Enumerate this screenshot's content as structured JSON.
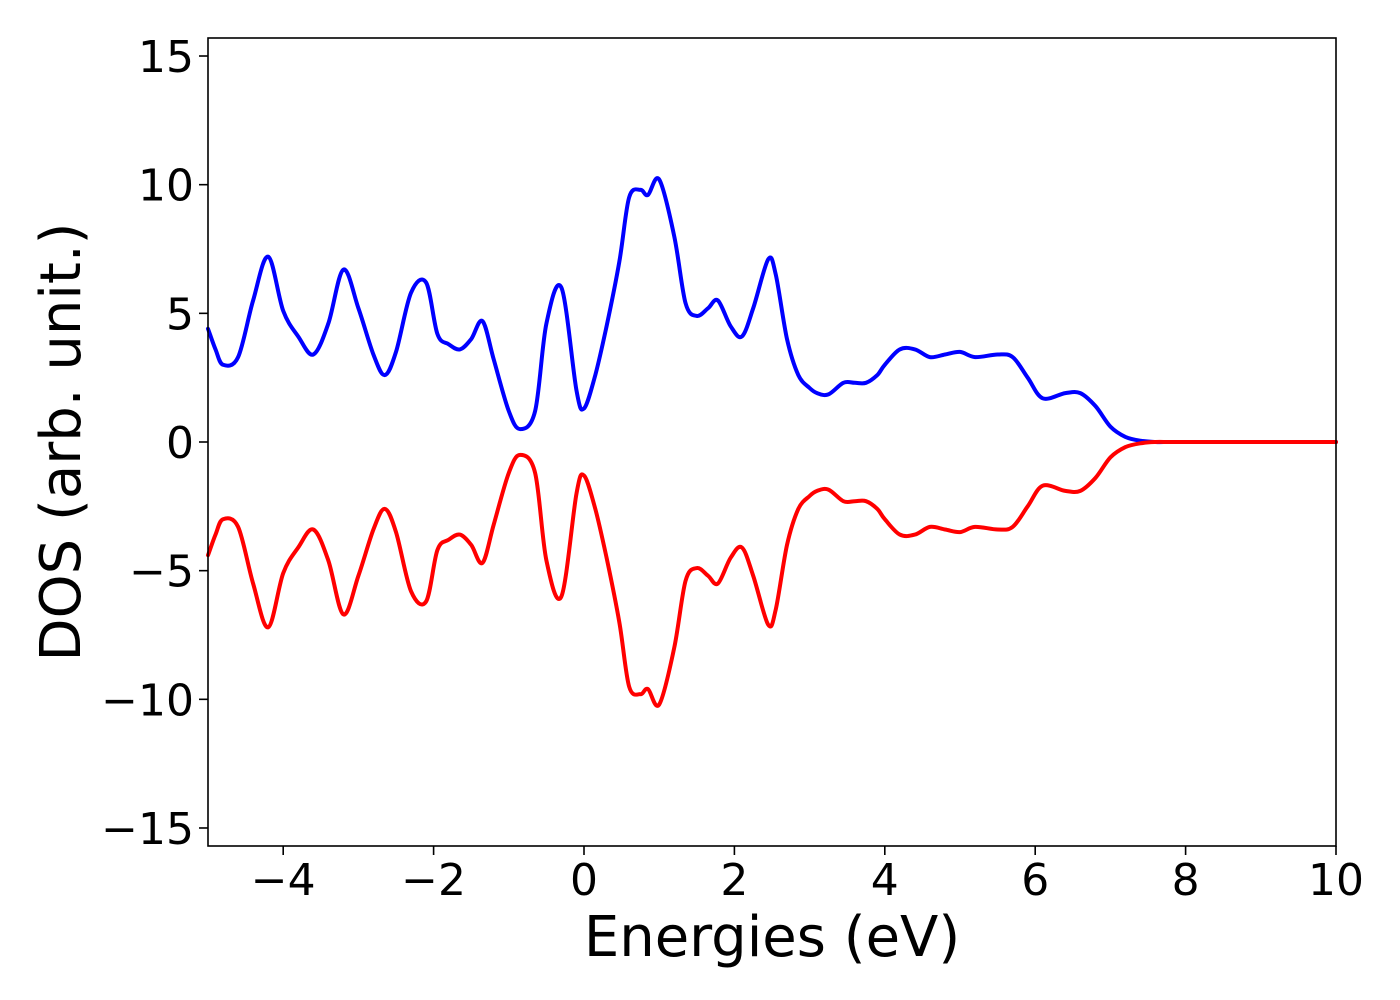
{
  "chart_data": {
    "type": "line",
    "xlabel": "Energies (eV)",
    "ylabel": "DOS (arb. unit.)",
    "xlim": [
      -5,
      10
    ],
    "ylim": [
      -15.7,
      15.7
    ],
    "xticks": [
      {
        "value": -4,
        "label": "−4"
      },
      {
        "value": -2,
        "label": "−2"
      },
      {
        "value": 0,
        "label": "0"
      },
      {
        "value": 2,
        "label": "2"
      },
      {
        "value": 4,
        "label": "4"
      },
      {
        "value": 6,
        "label": "6"
      },
      {
        "value": 8,
        "label": "8"
      },
      {
        "value": 10,
        "label": "10"
      }
    ],
    "yticks": [
      {
        "value": 15,
        "label": "15"
      },
      {
        "value": 10,
        "label": "10"
      },
      {
        "value": 5,
        "label": "5"
      },
      {
        "value": 0,
        "label": "0"
      },
      {
        "value": -5,
        "label": "−5"
      },
      {
        "value": -10,
        "label": "−10"
      },
      {
        "value": -15,
        "label": "−15"
      }
    ],
    "grid": false,
    "series": [
      {
        "color": "#0000ff",
        "x": [
          -5.0,
          -4.9,
          -4.8,
          -4.6,
          -4.4,
          -4.2,
          -4.0,
          -3.8,
          -3.6,
          -3.4,
          -3.2,
          -3.0,
          -2.8,
          -2.65,
          -2.5,
          -2.3,
          -2.1,
          -1.95,
          -1.8,
          -1.65,
          -1.5,
          -1.35,
          -1.2,
          -1.0,
          -0.85,
          -0.65,
          -0.5,
          -0.3,
          -0.1,
          0.0,
          0.15,
          0.3,
          0.47,
          0.6,
          0.75,
          0.85,
          1.0,
          1.2,
          1.35,
          1.5,
          1.65,
          1.78,
          1.95,
          2.1,
          2.25,
          2.45,
          2.55,
          2.7,
          2.85,
          3.0,
          3.1,
          3.25,
          3.45,
          3.6,
          3.75,
          3.9,
          4.0,
          4.2,
          4.4,
          4.6,
          4.8,
          5.0,
          5.2,
          5.5,
          5.7,
          5.9,
          6.1,
          6.4,
          6.6,
          6.8,
          7.0,
          7.2,
          7.4,
          7.6,
          7.75,
          7.85,
          8.0,
          8.15,
          8.3,
          8.5,
          8.7,
          9.0,
          10.0
        ],
        "y": [
          4.4,
          3.6,
          3.0,
          3.3,
          5.5,
          7.2,
          5.1,
          4.1,
          3.4,
          4.6,
          6.7,
          5.2,
          3.4,
          2.6,
          3.5,
          5.8,
          6.2,
          4.2,
          3.8,
          3.6,
          4.0,
          4.7,
          3.2,
          1.2,
          0.5,
          1.2,
          4.6,
          6.0,
          2.0,
          1.3,
          2.6,
          4.5,
          7.0,
          9.5,
          9.8,
          9.6,
          10.2,
          8.0,
          5.4,
          4.9,
          5.2,
          5.5,
          4.5,
          4.1,
          5.2,
          7.1,
          6.5,
          4.0,
          2.6,
          2.1,
          1.9,
          1.85,
          2.3,
          2.3,
          2.3,
          2.6,
          3.0,
          3.6,
          3.6,
          3.3,
          3.4,
          3.5,
          3.3,
          3.4,
          3.3,
          2.5,
          1.7,
          1.9,
          1.9,
          1.4,
          0.6,
          0.2,
          0.05,
          0.0,
          0.0,
          0.0,
          0.0,
          0.0,
          0.0,
          0.0,
          0.0,
          0.0,
          0.0
        ]
      },
      {
        "color": "#ff0000",
        "x": [
          -5.0,
          -4.9,
          -4.8,
          -4.6,
          -4.4,
          -4.2,
          -4.0,
          -3.8,
          -3.6,
          -3.4,
          -3.2,
          -3.0,
          -2.8,
          -2.65,
          -2.5,
          -2.3,
          -2.1,
          -1.95,
          -1.8,
          -1.65,
          -1.5,
          -1.35,
          -1.2,
          -1.0,
          -0.85,
          -0.65,
          -0.5,
          -0.3,
          -0.1,
          0.0,
          0.15,
          0.3,
          0.47,
          0.6,
          0.75,
          0.85,
          1.0,
          1.2,
          1.35,
          1.5,
          1.65,
          1.78,
          1.95,
          2.1,
          2.25,
          2.45,
          2.55,
          2.7,
          2.85,
          3.0,
          3.1,
          3.25,
          3.45,
          3.6,
          3.75,
          3.9,
          4.0,
          4.2,
          4.4,
          4.6,
          4.8,
          5.0,
          5.2,
          5.5,
          5.7,
          5.9,
          6.1,
          6.4,
          6.6,
          6.8,
          7.0,
          7.2,
          7.4,
          7.6,
          7.75,
          7.85,
          8.0,
          8.15,
          8.3,
          8.5,
          8.7,
          9.0,
          10.0
        ],
        "y": [
          -4.4,
          -3.6,
          -3.0,
          -3.3,
          -5.5,
          -7.2,
          -5.1,
          -4.1,
          -3.4,
          -4.6,
          -6.7,
          -5.2,
          -3.4,
          -2.6,
          -3.5,
          -5.8,
          -6.2,
          -4.2,
          -3.8,
          -3.6,
          -4.0,
          -4.7,
          -3.2,
          -1.2,
          -0.5,
          -1.2,
          -4.6,
          -6.0,
          -2.0,
          -1.3,
          -2.6,
          -4.5,
          -7.0,
          -9.5,
          -9.8,
          -9.6,
          -10.2,
          -8.0,
          -5.4,
          -4.9,
          -5.2,
          -5.5,
          -4.5,
          -4.1,
          -5.2,
          -7.1,
          -6.5,
          -4.0,
          -2.6,
          -2.1,
          -1.9,
          -1.85,
          -2.3,
          -2.3,
          -2.3,
          -2.6,
          -3.0,
          -3.6,
          -3.6,
          -3.3,
          -3.4,
          -3.5,
          -3.3,
          -3.4,
          -3.3,
          -2.5,
          -1.7,
          -1.9,
          -1.9,
          -1.4,
          -0.6,
          -0.2,
          -0.05,
          0.0,
          0.0,
          0.0,
          0.0,
          0.0,
          0.0,
          0.0,
          0.0,
          0.0,
          0.0
        ]
      }
    ]
  }
}
